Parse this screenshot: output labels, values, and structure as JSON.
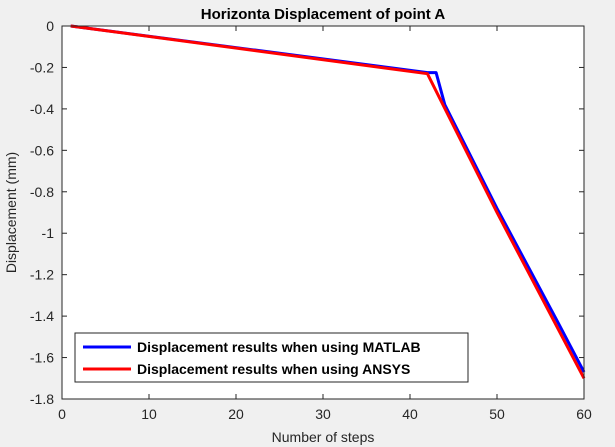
{
  "chart_data": {
    "type": "line",
    "title": "Horizonta Displacement of point A",
    "xlabel": "Number of steps",
    "ylabel": "Displacement (mm)",
    "xlim": [
      0,
      60
    ],
    "ylim": [
      -1.8,
      0
    ],
    "xticks": [
      0,
      10,
      20,
      30,
      40,
      50,
      60
    ],
    "yticks": [
      0,
      -0.2,
      -0.4,
      -0.6,
      -0.8,
      -1,
      -1.2,
      -1.4,
      -1.6,
      -1.8
    ],
    "grid": false,
    "legend_position": "bottom-left",
    "series": [
      {
        "name": "Displacement results when using MATLAB",
        "color": "#0000ff",
        "x": [
          1,
          42,
          43,
          44,
          50,
          57,
          60
        ],
        "y": [
          0,
          -0.225,
          -0.225,
          -0.38,
          -0.88,
          -1.43,
          -1.67
        ]
      },
      {
        "name": "Displacement results when using ANSYS",
        "color": "#ff0000",
        "x": [
          1,
          42,
          50,
          60
        ],
        "y": [
          0,
          -0.23,
          -0.9,
          -1.7
        ]
      }
    ]
  }
}
